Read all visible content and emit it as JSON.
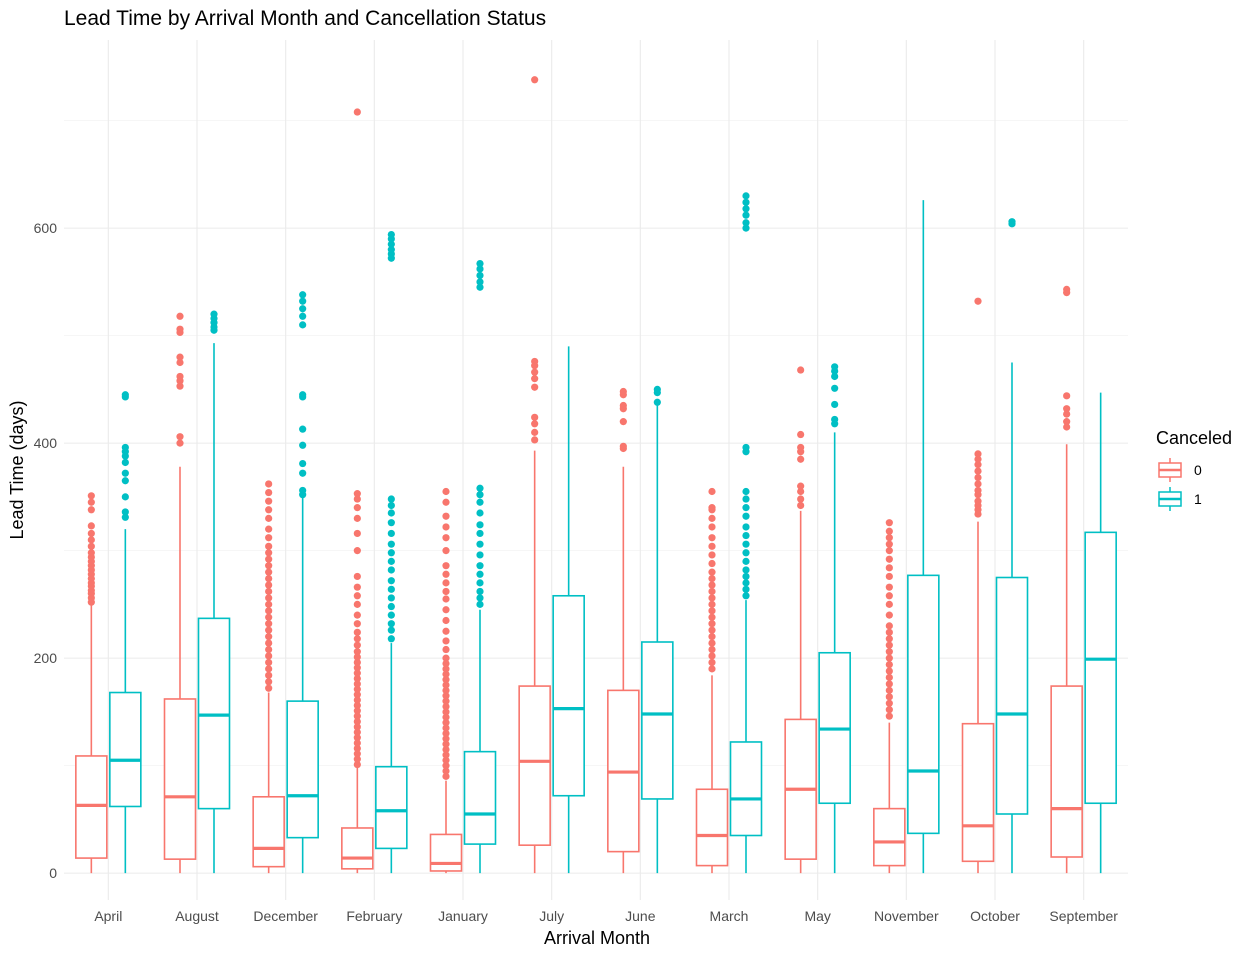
{
  "chart_data": {
    "type": "boxplot",
    "title": "Lead Time by Arrival Month and Cancellation Status",
    "xlabel": "Arrival Month",
    "ylabel": "Lead Time (days)",
    "ylim": [
      -25,
      775
    ],
    "yticks": [
      0,
      200,
      400,
      600
    ],
    "grid": true,
    "legend": {
      "title": "Canceled",
      "position": "right",
      "entries": [
        "0",
        "1"
      ]
    },
    "colors": {
      "0": "#F8766D",
      "1": "#00BFC4"
    },
    "categories": [
      "April",
      "August",
      "December",
      "February",
      "January",
      "July",
      "June",
      "March",
      "May",
      "November",
      "October",
      "September"
    ],
    "series": [
      {
        "name": "0",
        "boxes": [
          {
            "min": 0,
            "q1": 14,
            "median": 63,
            "q3": 109,
            "max": 250,
            "outliers": [
              252,
              256,
              260,
              263,
              267,
              270,
              274,
              278,
              282,
              286,
              290,
              294,
              298,
              304,
              310,
              316,
              323,
              338,
              345,
              351
            ]
          },
          {
            "min": 0,
            "q1": 13,
            "median": 71,
            "q3": 162,
            "max": 378,
            "outliers": [
              400,
              406,
              453,
              458,
              462,
              475,
              480,
              503,
              506,
              518
            ]
          },
          {
            "min": 0,
            "q1": 6,
            "median": 23,
            "q3": 71,
            "max": 168,
            "outliers": [
              172,
              178,
              184,
              190,
              196,
              202,
              208,
              214,
              220,
              226,
              232,
              238,
              244,
              250,
              256,
              262,
              268,
              274,
              280,
              286,
              292,
              298,
              304,
              312,
              320,
              330,
              338,
              346,
              354,
              362
            ]
          },
          {
            "min": 0,
            "q1": 4,
            "median": 14,
            "q3": 42,
            "max": 98,
            "outliers": [
              101,
              106,
              111,
              116,
              121,
              126,
              131,
              136,
              141,
              146,
              151,
              156,
              161,
              166,
              171,
              176,
              181,
              186,
              191,
              196,
              201,
              206,
              212,
              218,
              224,
              232,
              240,
              250,
              258,
              266,
              276,
              300,
              316,
              330,
              340,
              348,
              353,
              708
            ]
          },
          {
            "min": 0,
            "q1": 2,
            "median": 9,
            "q3": 36,
            "max": 86,
            "outliers": [
              90,
              95,
              100,
              105,
              110,
              115,
              120,
              125,
              130,
              135,
              140,
              145,
              150,
              155,
              160,
              165,
              170,
              175,
              180,
              185,
              190,
              195,
              200,
              208,
              216,
              225,
              235,
              245,
              255,
              262,
              270,
              278,
              286,
              300,
              312,
              322,
              332,
              345,
              355
            ]
          },
          {
            "min": 0,
            "q1": 26,
            "median": 104,
            "q3": 174,
            "max": 393,
            "outliers": [
              403,
              410,
              418,
              424,
              452,
              460,
              466,
              472,
              476,
              738
            ]
          },
          {
            "min": 0,
            "q1": 20,
            "median": 94,
            "q3": 170,
            "max": 378,
            "outliers": [
              395,
              397,
              420,
              432,
              435,
              445,
              448
            ]
          },
          {
            "min": 0,
            "q1": 7,
            "median": 35,
            "q3": 78,
            "max": 184,
            "outliers": [
              190,
              196,
              202,
              208,
              214,
              220,
              226,
              232,
              238,
              244,
              250,
              256,
              262,
              268,
              274,
              280,
              288,
              296,
              304,
              312,
              322,
              330,
              338,
              340,
              355
            ]
          },
          {
            "min": 0,
            "q1": 13,
            "median": 78,
            "q3": 143,
            "max": 337,
            "outliers": [
              342,
              348,
              355,
              360,
              385,
              392,
              396,
              408,
              468
            ]
          },
          {
            "min": 0,
            "q1": 7,
            "median": 29,
            "q3": 60,
            "max": 140,
            "outliers": [
              146,
              152,
              158,
              164,
              170,
              176,
              182,
              188,
              194,
              200,
              206,
              212,
              218,
              224,
              230,
              240,
              250,
              258,
              266,
              276,
              284,
              292,
              300,
              306,
              312,
              318,
              326
            ]
          },
          {
            "min": 0,
            "q1": 11,
            "median": 44,
            "q3": 139,
            "max": 327,
            "outliers": [
              334,
              338,
              342,
              346,
              352,
              356,
              362,
              368,
              374,
              380,
              385,
              390,
              532
            ]
          },
          {
            "min": 0,
            "q1": 15,
            "median": 60,
            "q3": 174,
            "max": 399,
            "outliers": [
              415,
              420,
              427,
              432,
              444,
              540,
              543
            ]
          }
        ]
      },
      {
        "name": "1",
        "boxes": [
          {
            "min": 0,
            "q1": 62,
            "median": 105,
            "q3": 168,
            "max": 320,
            "outliers": [
              331,
              336,
              350,
              365,
              372,
              382,
              388,
              392,
              396,
              443,
              445
            ]
          },
          {
            "min": 0,
            "q1": 60,
            "median": 147,
            "q3": 237,
            "max": 493,
            "outliers": [
              505,
              508,
              512,
              516,
              520
            ]
          },
          {
            "min": 0,
            "q1": 33,
            "median": 72,
            "q3": 160,
            "max": 350,
            "outliers": [
              352,
              356,
              372,
              381,
              398,
              413,
              443,
              445,
              510,
              518,
              525,
              532,
              538
            ]
          },
          {
            "min": 0,
            "q1": 23,
            "median": 58,
            "q3": 99,
            "max": 214,
            "outliers": [
              218,
              226,
              232,
              240,
              248,
              256,
              264,
              272,
              282,
              290,
              298,
              306,
              316,
              326,
              335,
              342,
              348,
              572,
              576,
              580,
              585,
              590,
              594
            ]
          },
          {
            "min": 0,
            "q1": 27,
            "median": 55,
            "q3": 113,
            "max": 245,
            "outliers": [
              250,
              256,
              262,
              270,
              278,
              286,
              296,
              306,
              316,
              324,
              335,
              345,
              352,
              358,
              545,
              550,
              556,
              562,
              567
            ]
          },
          {
            "min": 0,
            "q1": 72,
            "median": 153,
            "q3": 258,
            "max": 490,
            "outliers": []
          },
          {
            "min": 0,
            "q1": 69,
            "median": 148,
            "q3": 215,
            "max": 436,
            "outliers": [
              438,
              447,
              450
            ]
          },
          {
            "min": 0,
            "q1": 35,
            "median": 69,
            "q3": 122,
            "max": 254,
            "outliers": [
              258,
              264,
              270,
              276,
              282,
              290,
              298,
              306,
              314,
              322,
              332,
              340,
              348,
              355,
              392,
              396,
              600,
              605,
              612,
              618,
              624,
              630
            ]
          },
          {
            "min": 0,
            "q1": 65,
            "median": 134,
            "q3": 205,
            "max": 410,
            "outliers": [
              418,
              422,
              436,
              451,
              462,
              467,
              471
            ]
          },
          {
            "min": 0,
            "q1": 37,
            "median": 95,
            "q3": 277,
            "max": 626,
            "outliers": []
          },
          {
            "min": 0,
            "q1": 55,
            "median": 148,
            "q3": 275,
            "max": 475,
            "outliers": [
              604,
              606
            ]
          },
          {
            "min": 0,
            "q1": 65,
            "median": 199,
            "q3": 317,
            "max": 447,
            "outliers": []
          }
        ]
      }
    ]
  }
}
